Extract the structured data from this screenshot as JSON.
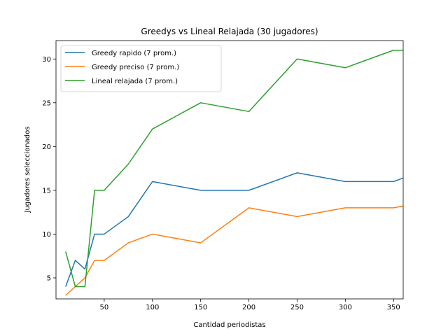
{
  "chart_data": {
    "type": "line",
    "title": "Greedys vs Lineal Relajada (30 jugadores)",
    "xlabel": "Cantidad periodistas",
    "ylabel": "Jugadores seleccionados",
    "xlim": [
      0,
      360
    ],
    "ylim": [
      2.6,
      32.1
    ],
    "xticks": [
      50,
      100,
      150,
      200,
      250,
      300,
      350
    ],
    "yticks": [
      5,
      10,
      15,
      20,
      25,
      30
    ],
    "grid": false,
    "legend_position": "top-left",
    "x": [
      10,
      20,
      30,
      40,
      50,
      75,
      100,
      150,
      200,
      250,
      300,
      350,
      375
    ],
    "series": [
      {
        "name": "Greedy rapido  (7 prom.)",
        "color": "#1f77b4",
        "values": [
          4,
          7,
          6,
          10,
          10,
          12,
          16,
          15,
          15,
          17,
          16,
          16,
          17
        ]
      },
      {
        "name": "Greedy preciso  (7 prom.)",
        "color": "#ff7f0e",
        "values": [
          3,
          4,
          5,
          7,
          7,
          9,
          10,
          9,
          13,
          12,
          13,
          13,
          13.5
        ]
      },
      {
        "name": "Lineal relajada  (7 prom.)",
        "color": "#2ca02c",
        "values": [
          8,
          4,
          4,
          15,
          15,
          18,
          22,
          25,
          24,
          30,
          29,
          31,
          31
        ]
      }
    ]
  }
}
